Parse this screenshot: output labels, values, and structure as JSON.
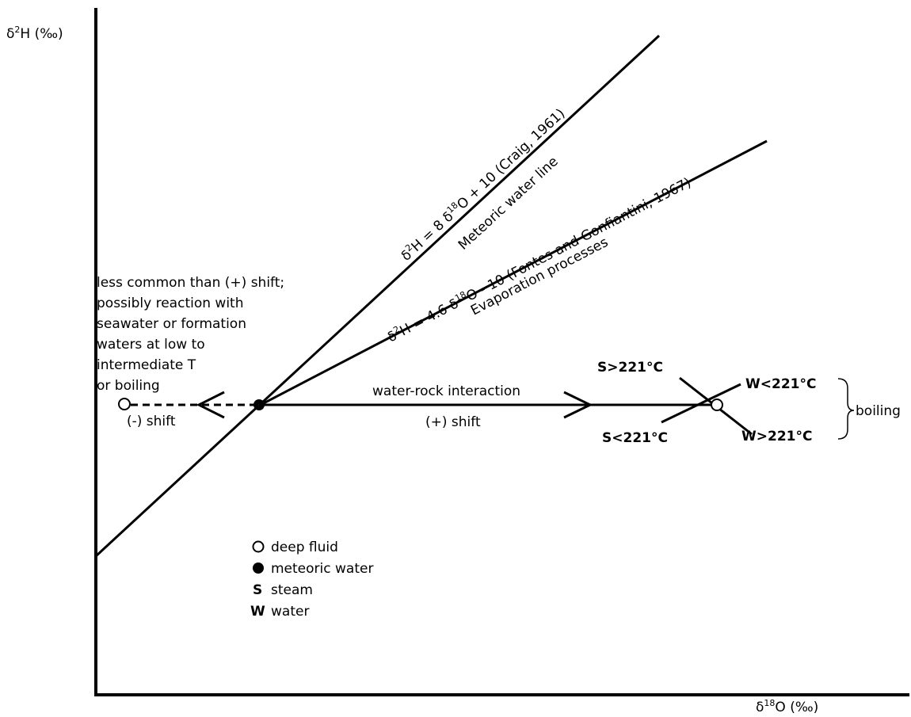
{
  "axes": {
    "y_label": {
      "prefix": "δ",
      "sup": "2",
      "suffix": "H (‰)"
    },
    "x_label": {
      "prefix": "δ",
      "sup": "18",
      "suffix": "O (‰)"
    }
  },
  "meteoric_line": {
    "equation": {
      "p1": "δ",
      "s1": "2",
      "p2": "H = 8 δ",
      "s2": "18",
      "p3": "O + 10 (Craig, 1961)"
    },
    "name": "Meteoric water line"
  },
  "evaporation_line": {
    "equation": {
      "p1": "δ",
      "s1": "2",
      "p2": "H = 4.6 δ",
      "s2": "18",
      "p3": "O - 10 (Fontes and Gonfiantini, 1967)"
    },
    "name": "Evaporation processes"
  },
  "negative_shift": {
    "label": "(-) shift",
    "note": [
      "less common than (+) shift;",
      "possibly reaction with",
      "seawater or formation",
      "waters at low to",
      "intermediate T",
      "or boiling"
    ]
  },
  "positive_shift": {
    "label": "(+) shift",
    "process": "water-rock interaction"
  },
  "boiling": {
    "label": "boiling",
    "steam_above": "S>221°C",
    "steam_below": "S<221°C",
    "water_below": "W<221°C",
    "water_above": "W>221°C"
  },
  "legend": {
    "deep_fluid": "deep fluid",
    "meteoric_water": "meteoric water",
    "steam_symbol": "S",
    "steam": "steam",
    "water_symbol": "W",
    "water": "water"
  },
  "colors": {
    "line": "#000000",
    "background": "#ffffff"
  }
}
